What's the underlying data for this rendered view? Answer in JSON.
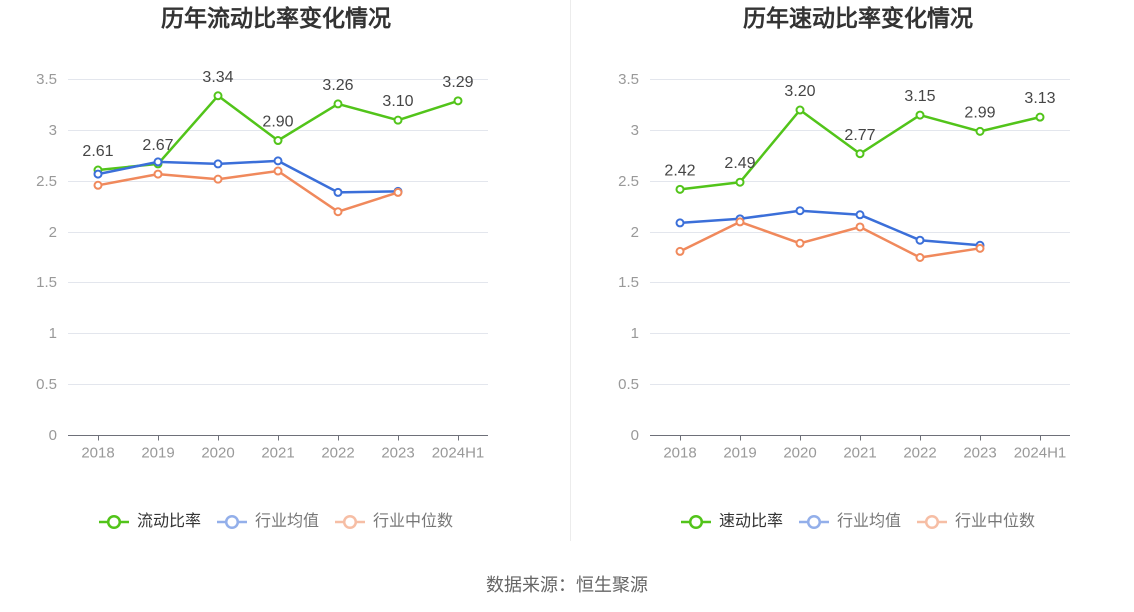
{
  "footer": {
    "source": "数据来源：恒生聚源"
  },
  "chart_data": [
    {
      "type": "line",
      "title": "历年流动比率变化情况",
      "categories": [
        "2018",
        "2019",
        "2020",
        "2021",
        "2022",
        "2023",
        "2024H1"
      ],
      "ylim": [
        0,
        3.5
      ],
      "yticks": [
        0,
        0.5,
        1,
        1.5,
        2,
        2.5,
        3,
        3.5
      ],
      "grid": true,
      "legend_position": "bottom",
      "series": [
        {
          "name": "流动比率",
          "color": "#52c41a",
          "data_labels": true,
          "values": [
            2.61,
            2.67,
            3.34,
            2.9,
            3.26,
            3.1,
            3.29
          ]
        },
        {
          "name": "行业均值",
          "color": "#3b6fd9",
          "data_labels": false,
          "values": [
            2.57,
            2.69,
            2.67,
            2.7,
            2.39,
            2.4,
            null
          ]
        },
        {
          "name": "行业中位数",
          "color": "#f0895c",
          "data_labels": false,
          "values": [
            2.46,
            2.57,
            2.52,
            2.6,
            2.2,
            2.39,
            null
          ]
        }
      ]
    },
    {
      "type": "line",
      "title": "历年速动比率变化情况",
      "categories": [
        "2018",
        "2019",
        "2020",
        "2021",
        "2022",
        "2023",
        "2024H1"
      ],
      "ylim": [
        0,
        3.5
      ],
      "yticks": [
        0,
        0.5,
        1,
        1.5,
        2,
        2.5,
        3,
        3.5
      ],
      "grid": true,
      "legend_position": "bottom",
      "series": [
        {
          "name": "速动比率",
          "color": "#52c41a",
          "data_labels": true,
          "values": [
            2.42,
            2.49,
            3.2,
            2.77,
            3.15,
            2.99,
            3.13
          ]
        },
        {
          "name": "行业均值",
          "color": "#3b6fd9",
          "data_labels": false,
          "values": [
            2.09,
            2.13,
            2.21,
            2.17,
            1.92,
            1.87,
            null
          ]
        },
        {
          "name": "行业中位数",
          "color": "#f0895c",
          "data_labels": false,
          "values": [
            1.81,
            2.1,
            1.89,
            2.05,
            1.75,
            1.84,
            null
          ]
        }
      ]
    }
  ]
}
